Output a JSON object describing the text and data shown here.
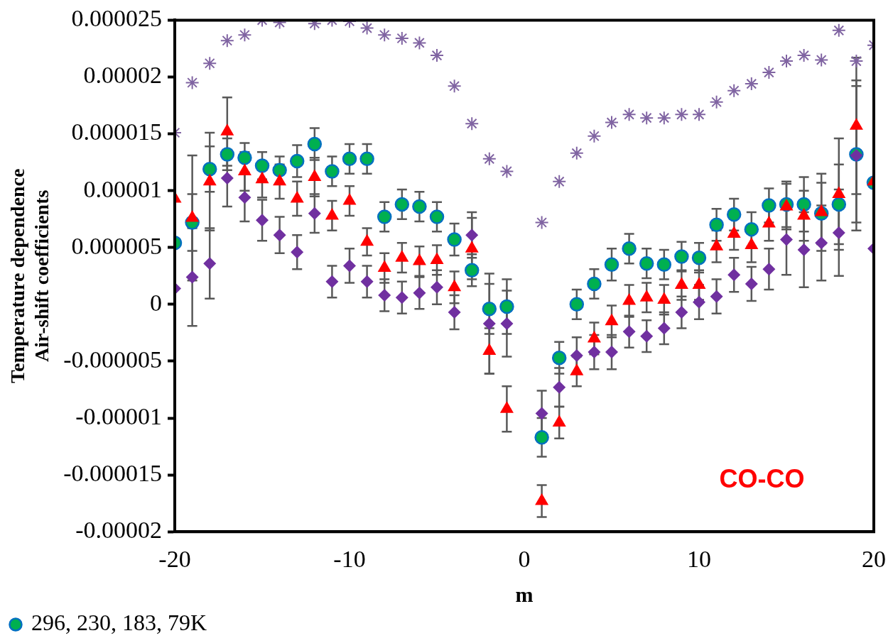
{
  "chart_data": {
    "type": "scatter",
    "xlabel": "m",
    "ylabel": "Temperature dependence\nAir-shift coefficients",
    "x": [
      -20,
      -19,
      -18,
      -17,
      -16,
      -15,
      -14,
      -13,
      -12,
      -11,
      -10,
      -9,
      -8,
      -7,
      -6,
      -5,
      -4,
      -3,
      -2,
      -1,
      1,
      2,
      3,
      4,
      5,
      6,
      7,
      8,
      9,
      10,
      11,
      12,
      13,
      14,
      15,
      16,
      17,
      18,
      19,
      20
    ],
    "xlim": [
      -20,
      20
    ],
    "xticks": [
      -20,
      -10,
      0,
      10,
      20
    ],
    "ylim": [
      -2e-05,
      2.5e-05
    ],
    "yticks": [
      {
        "value": -2e-05,
        "label": "-0.00002"
      },
      {
        "value": -1.5e-05,
        "label": "-0.000015"
      },
      {
        "value": -1e-05,
        "label": "-0.00001"
      },
      {
        "value": -5e-06,
        "label": "-0.000005"
      },
      0,
      {
        "value": 5e-06,
        "label": "0.000005"
      },
      {
        "value": 1e-05,
        "label": "0.00001"
      },
      {
        "value": 1.5e-05,
        "label": "0.000015"
      },
      {
        "value": 2e-05,
        "label": "0.00002"
      },
      {
        "value": 2.5e-05,
        "label": "0.000025"
      }
    ],
    "grid": false,
    "legend": "bottom left",
    "series": [
      {
        "name": "296, 230, 183, 79K",
        "color": "#00b050",
        "marker": "circle",
        "values": [
          5.4e-06,
          7.2e-06,
          1.19e-05,
          1.32e-05,
          1.29e-05,
          1.22e-05,
          1.18e-05,
          1.26e-05,
          1.41e-05,
          1.17e-05,
          1.28e-05,
          1.28e-05,
          7.7e-06,
          8.8e-06,
          8.6e-06,
          7.7e-06,
          5.7e-06,
          3e-06,
          -4e-07,
          -2e-07,
          -1.17e-05,
          -4.7e-06,
          0,
          1.8e-06,
          3.5e-06,
          4.9e-06,
          3.6e-06,
          3.5e-06,
          4.2e-06,
          4.1e-06,
          7e-06,
          7.9e-06,
          6.6e-06,
          8.7e-06,
          8.8e-06,
          8.8e-06,
          8e-06,
          8.8e-06,
          1.32e-05,
          1.07e-05
        ],
        "errors": [
          null,
          2.5e-06,
          2e-06,
          1.4e-06,
          1.3e-06,
          1.2e-06,
          1.2e-06,
          1.4e-06,
          1.4e-06,
          1.3e-06,
          1.3e-06,
          1.3e-06,
          1.3e-06,
          1.3e-06,
          1.3e-06,
          1.3e-06,
          1.4e-06,
          1.4e-06,
          2.2e-06,
          2.4e-06,
          1.7e-06,
          1.4e-06,
          1.3e-06,
          1.3e-06,
          1.4e-06,
          1.3e-06,
          1.3e-06,
          1.3e-06,
          1.3e-06,
          1.3e-06,
          1.4e-06,
          1.4e-06,
          1.5e-06,
          1.5e-06,
          2e-06,
          2.4e-06,
          2.7e-06,
          3.5e-06,
          6e-06,
          null
        ]
      },
      {
        "color": "#ff0000",
        "marker": "triangle",
        "values": [
          9.3e-06,
          7.6e-06,
          1.08e-05,
          1.52e-05,
          1.17e-05,
          1.1e-05,
          1.08e-05,
          9.3e-06,
          1.12e-05,
          7.8e-06,
          9.1e-06,
          5.5e-06,
          3.2e-06,
          4.1e-06,
          3.8e-06,
          3.9e-06,
          1.5e-06,
          4.9e-06,
          -4.1e-06,
          -9.2e-06,
          -1.73e-05,
          -1.04e-05,
          -5.9e-06,
          -3e-06,
          -1.5e-06,
          3e-07,
          6e-07,
          4e-07,
          1.7e-06,
          1.7e-06,
          5.1e-06,
          6.2e-06,
          5.2e-06,
          7.1e-06,
          8.6e-06,
          7.8e-06,
          8.1e-06,
          9.7e-06,
          1.57e-05,
          1.08e-05
        ],
        "errors": [
          null,
          5.5e-06,
          4.3e-06,
          3e-06,
          1.7e-06,
          1.6e-06,
          1.5e-06,
          1.5e-06,
          1.7e-06,
          1.3e-06,
          1.3e-06,
          1.2e-06,
          1.3e-06,
          1.3e-06,
          1.3e-06,
          1.3e-06,
          1.4e-06,
          2.7e-06,
          2e-06,
          2e-06,
          1.4e-06,
          1.4e-06,
          1.3e-06,
          1.4e-06,
          1.4e-06,
          1.4e-06,
          1.3e-06,
          1.3e-06,
          1.3e-06,
          1.3e-06,
          1.4e-06,
          1.4e-06,
          1.5e-06,
          1.5e-06,
          2e-06,
          2.2e-06,
          3.4e-06,
          4.9e-06,
          6e-06,
          null
        ]
      },
      {
        "color": "#7030a0",
        "marker": "diamond",
        "values": [
          1.4e-06,
          2.4e-06,
          3.6e-06,
          1.11e-05,
          9.4e-06,
          7.4e-06,
          6.1e-06,
          4.6e-06,
          8e-06,
          2e-06,
          3.4e-06,
          2e-06,
          8e-07,
          6e-07,
          1e-06,
          1.5e-06,
          -7e-07,
          6.1e-06,
          -1.7e-06,
          -1.7e-06,
          -9.6e-06,
          -7.3e-06,
          -4.5e-06,
          -4.2e-06,
          -4.2e-06,
          -2.4e-06,
          -2.8e-06,
          -2.1e-06,
          -7e-07,
          2e-07,
          7e-07,
          2.6e-06,
          1.8e-06,
          3.1e-06,
          5.7e-06,
          4.8e-06,
          5.4e-06,
          6.3e-06,
          1.31e-05,
          4.9e-06
        ],
        "errors": [
          null,
          4.3e-06,
          3.1e-06,
          2.5e-06,
          2.1e-06,
          1.8e-06,
          1.6e-06,
          1.5e-06,
          1.7e-06,
          1.4e-06,
          1.5e-06,
          1.4e-06,
          1.4e-06,
          1.4e-06,
          1.4e-06,
          1.5e-06,
          1.5e-06,
          2e-06,
          4.4e-06,
          2.9e-06,
          2e-06,
          1.7e-06,
          1.6e-06,
          1.5e-06,
          1.5e-06,
          1.4e-06,
          1.4e-06,
          1.4e-06,
          1.4e-06,
          1.5e-06,
          1.5e-06,
          1.5e-06,
          1.5e-06,
          1.8e-06,
          3.1e-06,
          3.3e-06,
          3.3e-06,
          3.8e-06,
          6.6e-06,
          null
        ]
      },
      {
        "color": "#8064a2",
        "marker": "cross",
        "values": [
          1.51e-05,
          1.95e-05,
          2.12e-05,
          2.32e-05,
          2.37e-05,
          2.5e-05,
          2.48e-05,
          null,
          2.47e-05,
          2.5e-05,
          2.49e-05,
          2.43e-05,
          2.37e-05,
          2.34e-05,
          2.3e-05,
          2.19e-05,
          1.92e-05,
          1.59e-05,
          1.28e-05,
          1.17e-05,
          7.2e-06,
          1.08e-05,
          1.33e-05,
          1.48e-05,
          1.6e-05,
          1.67e-05,
          1.64e-05,
          1.64e-05,
          1.67e-05,
          1.67e-05,
          1.78e-05,
          1.88e-05,
          1.94e-05,
          2.04e-05,
          2.14e-05,
          2.19e-05,
          2.15e-05,
          2.41e-05,
          2.14e-05,
          2.28e-05
        ]
      }
    ],
    "annotations": [
      "CO-CO"
    ]
  }
}
